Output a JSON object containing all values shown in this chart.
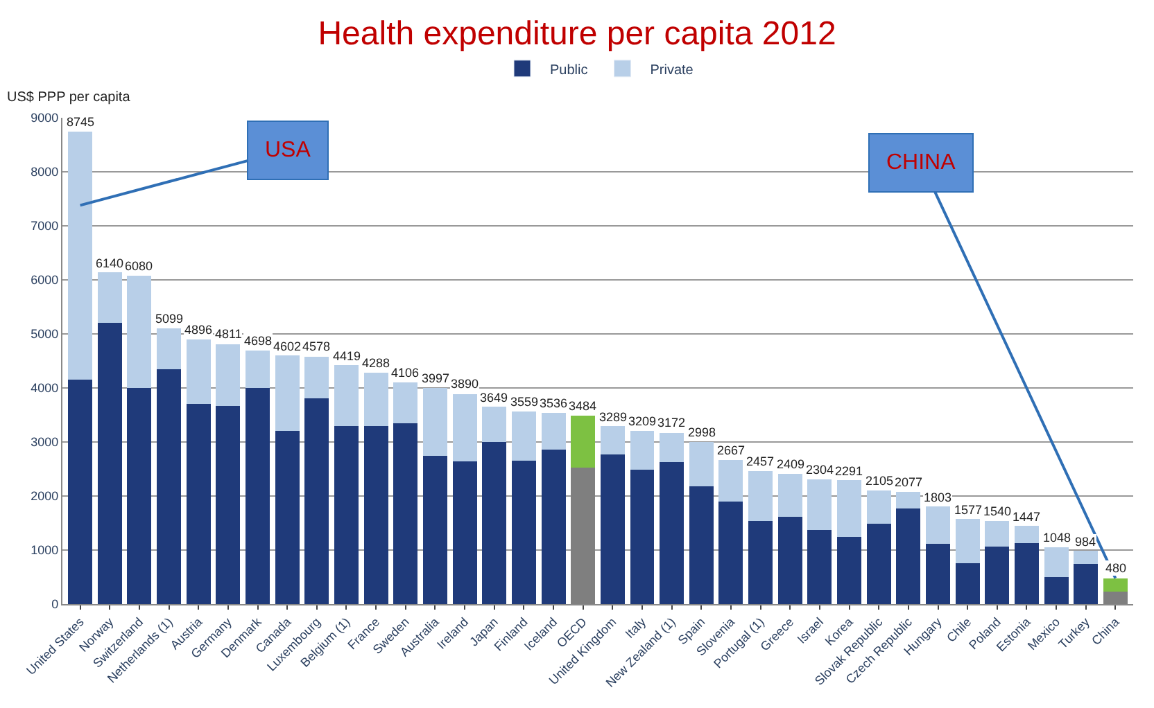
{
  "chart_data": {
    "type": "bar",
    "title": "Health expenditure per capita 2012",
    "ylabel": "US$ PPP per capita",
    "categories": [
      "United States",
      "Norway",
      "Switzerland",
      "Netherlands (1)",
      "Austria",
      "Germany",
      "Denmark",
      "Canada",
      "Luxembourg",
      "Belgium (1)",
      "France",
      "Sweden",
      "Australia",
      "Ireland",
      "Japan",
      "Finland",
      "Iceland",
      "OECD",
      "United Kingdom",
      "Italy",
      "New Zealand (1)",
      "Spain",
      "Slovenia",
      "Portugal (1)",
      "Greece",
      "Israel",
      "Korea",
      "Slovak Republic",
      "Czech Republic",
      "Hungary",
      "Chile",
      "Poland",
      "Estonia",
      "Mexico",
      "Turkey",
      "China"
    ],
    "stacked": true,
    "series": [
      {
        "name": "Public",
        "color": "#1f3a7a",
        "colors": [
          "#1f3a7a",
          "#1f3a7a",
          "#1f3a7a",
          "#1f3a7a",
          "#1f3a7a",
          "#1f3a7a",
          "#1f3a7a",
          "#1f3a7a",
          "#1f3a7a",
          "#1f3a7a",
          "#1f3a7a",
          "#1f3a7a",
          "#1f3a7a",
          "#1f3a7a",
          "#1f3a7a",
          "#1f3a7a",
          "#1f3a7a",
          "#7f7f7f",
          "#1f3a7a",
          "#1f3a7a",
          "#1f3a7a",
          "#1f3a7a",
          "#1f3a7a",
          "#1f3a7a",
          "#1f3a7a",
          "#1f3a7a",
          "#1f3a7a",
          "#1f3a7a",
          "#1f3a7a",
          "#1f3a7a",
          "#1f3a7a",
          "#1f3a7a",
          "#1f3a7a",
          "#1f3a7a",
          "#1f3a7a",
          "#7f7f7f"
        ],
        "values": [
          4150,
          5200,
          4000,
          4350,
          3700,
          3670,
          4000,
          3200,
          3810,
          3300,
          3300,
          3350,
          2750,
          2640,
          3000,
          2660,
          2860,
          2530,
          2770,
          2490,
          2630,
          2180,
          1900,
          1540,
          1620,
          1370,
          1250,
          1490,
          1770,
          1120,
          760,
          1060,
          1130,
          500,
          750,
          230
        ]
      },
      {
        "name": "Private",
        "color": "#b8cfe8",
        "colors": [
          "#b8cfe8",
          "#b8cfe8",
          "#b8cfe8",
          "#b8cfe8",
          "#b8cfe8",
          "#b8cfe8",
          "#b8cfe8",
          "#b8cfe8",
          "#b8cfe8",
          "#b8cfe8",
          "#b8cfe8",
          "#b8cfe8",
          "#b8cfe8",
          "#b8cfe8",
          "#b8cfe8",
          "#b8cfe8",
          "#b8cfe8",
          "#7dc142",
          "#b8cfe8",
          "#b8cfe8",
          "#b8cfe8",
          "#b8cfe8",
          "#b8cfe8",
          "#b8cfe8",
          "#b8cfe8",
          "#b8cfe8",
          "#b8cfe8",
          "#b8cfe8",
          "#b8cfe8",
          "#b8cfe8",
          "#b8cfe8",
          "#b8cfe8",
          "#b8cfe8",
          "#b8cfe8",
          "#b8cfe8",
          "#7dc142"
        ],
        "values": [
          4595,
          940,
          2080,
          749,
          1196,
          1141,
          698,
          1402,
          768,
          1119,
          988,
          756,
          1247,
          1250,
          649,
          899,
          676,
          954,
          519,
          719,
          542,
          818,
          767,
          917,
          789,
          934,
          1041,
          615,
          307,
          683,
          817,
          480,
          317,
          548,
          234,
          250
        ]
      }
    ],
    "totals": [
      "8745",
      "6140",
      "6080",
      "5099",
      "4896",
      "4811",
      "4698",
      "4602",
      "4578",
      "4419",
      "4288",
      "4106",
      "3997",
      "3890",
      "3649",
      "3559",
      "3536",
      "3484",
      "3289",
      "3209",
      "3172",
      "2998",
      "2667",
      "2457",
      "2409",
      "2304",
      "2291",
      "2105",
      "2077",
      "1803",
      "1577",
      "1540",
      "1447",
      "1048",
      "984",
      "480"
    ],
    "ylim": [
      0,
      9000
    ],
    "yticks": [
      0,
      1000,
      2000,
      3000,
      4000,
      5000,
      6000,
      7000,
      8000,
      9000
    ],
    "grid": "y",
    "legend": "top",
    "annotations": [
      "USA",
      {
        "text": "CHINA",
        "x": "China",
        "y": 480
      }
    ]
  }
}
